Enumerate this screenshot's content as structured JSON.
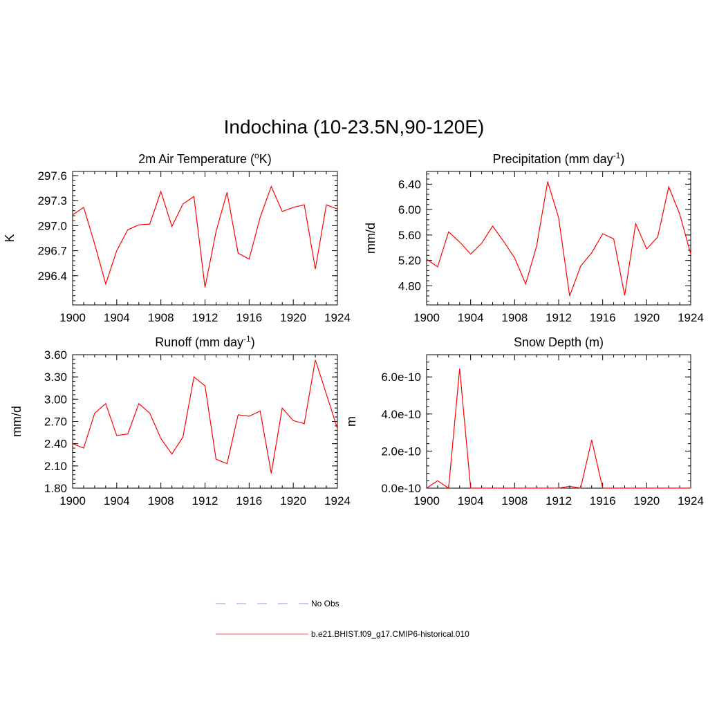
{
  "title": "Indochina (10-23.5N,90-120E)",
  "legend": {
    "items": [
      {
        "label": "No Obs",
        "color": "#9999ee",
        "dash": true
      },
      {
        "label": "b.e21.BHIST.f09_g17.CMIP6-historical.010",
        "color": "#ff6666",
        "dash": false
      }
    ]
  },
  "line_color": "#ff0000",
  "chart_data": [
    {
      "type": "line",
      "title_main": "2m Air Temperature (",
      "title_sup": "o",
      "title_post": "K)",
      "ylabel": "K",
      "xlim": [
        1900,
        1924
      ],
      "ylim": [
        296.05,
        297.65
      ],
      "xticks": [
        "1900",
        "1904",
        "1908",
        "1912",
        "1916",
        "1920",
        "1924"
      ],
      "yticks": [
        "297.6",
        "297.3",
        "297.0",
        "296.7",
        "296.4"
      ],
      "ytick_values": [
        297.6,
        297.3,
        297.0,
        296.7,
        296.4
      ],
      "x": [
        1900,
        1901,
        1902,
        1903,
        1904,
        1905,
        1906,
        1907,
        1908,
        1909,
        1910,
        1911,
        1912,
        1913,
        1914,
        1915,
        1916,
        1917,
        1918,
        1919,
        1920,
        1921,
        1922,
        1923,
        1924
      ],
      "series": [
        {
          "values": [
            297.13,
            297.22,
            296.78,
            296.3,
            296.7,
            296.95,
            297.01,
            297.02,
            297.41,
            296.99,
            297.26,
            297.35,
            296.26,
            296.93,
            297.4,
            296.67,
            296.6,
            297.1,
            297.47,
            297.17,
            297.22,
            297.25,
            296.48,
            297.25,
            297.2
          ]
        }
      ]
    },
    {
      "type": "line",
      "title_main": "Precipitation (mm day",
      "title_sup": "-1",
      "title_post": ")",
      "ylabel": "mm/d",
      "xlim": [
        1900,
        1924
      ],
      "ylim": [
        4.5,
        6.6
      ],
      "xticks": [
        "1900",
        "1904",
        "1908",
        "1912",
        "1916",
        "1920",
        "1924"
      ],
      "yticks": [
        "6.40",
        "6.00",
        "5.60",
        "5.20",
        "4.80"
      ],
      "ytick_values": [
        6.4,
        6.0,
        5.6,
        5.2,
        4.8
      ],
      "x": [
        1900,
        1901,
        1902,
        1903,
        1904,
        1905,
        1906,
        1907,
        1908,
        1909,
        1910,
        1911,
        1912,
        1913,
        1914,
        1915,
        1916,
        1917,
        1918,
        1919,
        1920,
        1921,
        1922,
        1923,
        1924
      ],
      "series": [
        {
          "values": [
            5.22,
            5.1,
            5.65,
            5.49,
            5.3,
            5.47,
            5.74,
            5.5,
            5.24,
            4.83,
            5.43,
            6.44,
            5.87,
            4.64,
            5.11,
            5.32,
            5.62,
            5.54,
            4.65,
            5.78,
            5.38,
            5.57,
            6.36,
            5.93,
            5.3
          ]
        }
      ]
    },
    {
      "type": "line",
      "title_main": "Runoff (mm day",
      "title_sup": "-1",
      "title_post": ")",
      "ylabel": "mm/d",
      "xlim": [
        1900,
        1924
      ],
      "ylim": [
        1.8,
        3.6
      ],
      "xticks": [
        "1900",
        "1904",
        "1908",
        "1912",
        "1916",
        "1920",
        "1924"
      ],
      "yticks": [
        "3.60",
        "3.30",
        "3.00",
        "2.70",
        "2.40",
        "2.10",
        "1.80"
      ],
      "ytick_values": [
        3.6,
        3.3,
        3.0,
        2.7,
        2.4,
        2.1,
        1.8
      ],
      "x": [
        1900,
        1901,
        1902,
        1903,
        1904,
        1905,
        1906,
        1907,
        1908,
        1909,
        1910,
        1911,
        1912,
        1913,
        1914,
        1915,
        1916,
        1917,
        1918,
        1919,
        1920,
        1921,
        1922,
        1923,
        1924
      ],
      "series": [
        {
          "values": [
            2.4,
            2.34,
            2.81,
            2.94,
            2.51,
            2.53,
            2.94,
            2.81,
            2.47,
            2.26,
            2.49,
            3.3,
            3.18,
            2.19,
            2.13,
            2.79,
            2.77,
            2.84,
            2.0,
            2.88,
            2.71,
            2.67,
            3.53,
            3.07,
            2.6
          ]
        }
      ]
    },
    {
      "type": "line",
      "title_main": "Snow Depth (m)",
      "title_sup": "",
      "title_post": "",
      "ylabel": "m",
      "xlim": [
        1900,
        1924
      ],
      "ylim": [
        0,
        7.2e-10
      ],
      "xticks": [
        "1900",
        "1904",
        "1908",
        "1912",
        "1916",
        "1920",
        "1924"
      ],
      "yticks": [
        "6.0e-10",
        "4.0e-10",
        "2.0e-10",
        "0.0e-10"
      ],
      "ytick_values": [
        6e-10,
        4e-10,
        2e-10,
        0.0
      ],
      "x": [
        1900,
        1901,
        1902,
        1903,
        1904,
        1905,
        1906,
        1907,
        1908,
        1909,
        1910,
        1911,
        1912,
        1913,
        1914,
        1915,
        1916,
        1917,
        1918,
        1919,
        1920,
        1921,
        1922,
        1923,
        1924
      ],
      "series": [
        {
          "values": [
            0,
            4e-11,
            0,
            6.45e-10,
            0,
            0,
            0,
            0,
            0,
            0,
            0,
            0,
            0,
            1e-11,
            0,
            2.6e-10,
            0,
            0,
            0,
            0,
            0,
            0,
            0,
            0,
            0
          ]
        }
      ]
    }
  ]
}
